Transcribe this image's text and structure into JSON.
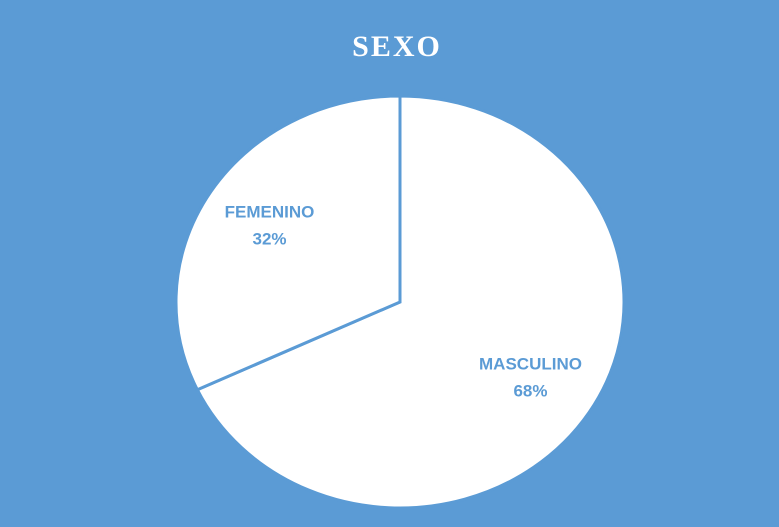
{
  "chart_data": {
    "type": "pie",
    "title": "SEXO",
    "categories": [
      "MASCULINO",
      "FEMENINO"
    ],
    "values": [
      68,
      32
    ],
    "value_labels": [
      "68%",
      "32%"
    ],
    "colors": [
      "#ffffff",
      "#ffffff"
    ],
    "label_color": "#5b9bd5",
    "background": "#5b9bd5"
  }
}
